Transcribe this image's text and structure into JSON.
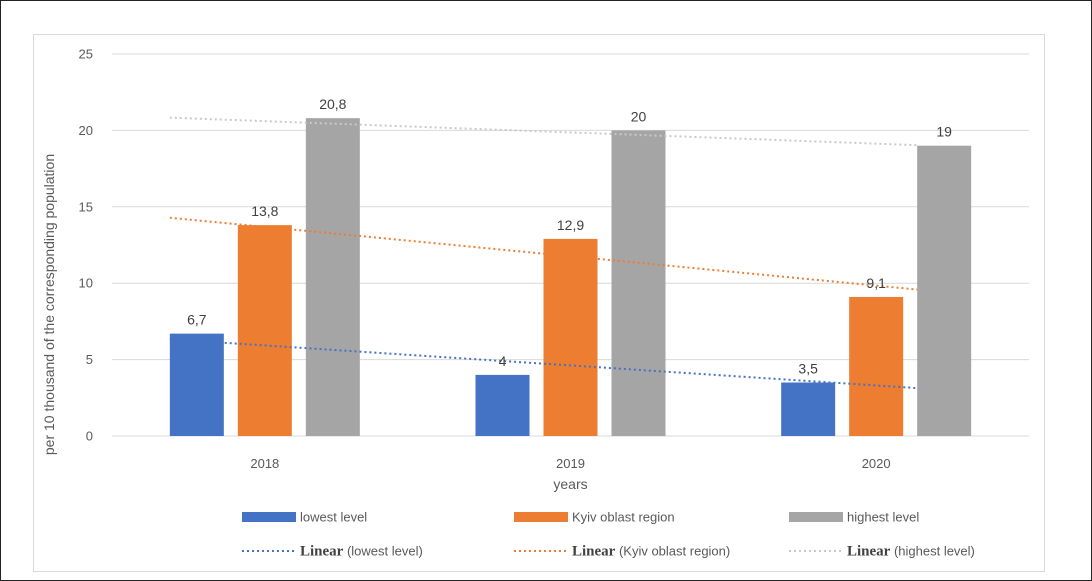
{
  "chart_data": {
    "type": "bar",
    "title": "",
    "xlabel": "years",
    "ylabel": "per 10 thousand of the corresponding population",
    "categories": [
      "2018",
      "2019",
      "2020"
    ],
    "ylim": [
      0,
      25
    ],
    "yticks": [
      0,
      5,
      10,
      15,
      20,
      25
    ],
    "grid": true,
    "legend_position": "bottom",
    "series": [
      {
        "name": "lowest level",
        "values": [
          6.7,
          4,
          3.5
        ],
        "labels": [
          "6,7",
          "4",
          "3,5"
        ],
        "color": "#4472C4"
      },
      {
        "name": "Kyiv oblast region",
        "values": [
          13.8,
          12.9,
          9.1
        ],
        "labels": [
          "13,8",
          "12,9",
          "9,1"
        ],
        "color": "#ED7D31"
      },
      {
        "name": "highest level",
        "values": [
          20.8,
          20,
          19
        ],
        "labels": [
          "20,8",
          "20",
          "19"
        ],
        "color": "#A5A5A5"
      }
    ],
    "trendlines": [
      {
        "label_bold": "Linear",
        "label_rest": " (lowest level)",
        "series": "lowest level",
        "color": "#4472C4"
      },
      {
        "label_bold": "Linear",
        "label_rest": " (Kyiv oblast region)",
        "series": "Kyiv oblast region",
        "color": "#ED7D31"
      },
      {
        "label_bold": "Linear",
        "label_rest": " (highest level)",
        "series": "highest level",
        "color": "#C9C9C9"
      }
    ]
  }
}
